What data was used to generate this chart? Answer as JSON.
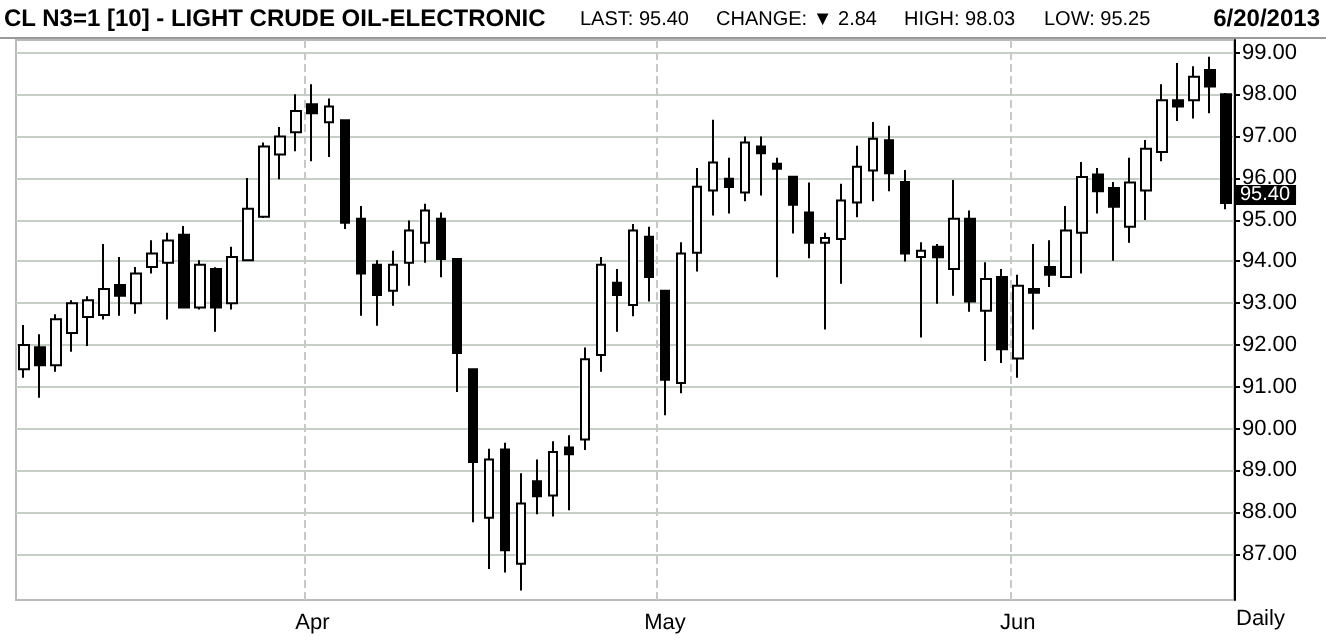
{
  "chart_data": {
    "type": "candlestick",
    "title": "CL N3=1 [10] - LIGHT CRUDE OIL-ELECTRONIC",
    "subtitle": "6/20/2013",
    "xlabel": "Daily",
    "annotations": [
      "LAST: 95.40",
      "CHANGE: ▼ 2.84",
      "HIGH: 98.03",
      "LOW: 95.25",
      "95.40"
    ],
    "categories": [
      null,
      null,
      null,
      null,
      null,
      null,
      null,
      null,
      null,
      null,
      null,
      null,
      null,
      null,
      null,
      null,
      null,
      null,
      "Apr",
      null,
      null,
      null,
      null,
      null,
      null,
      null,
      null,
      null,
      null,
      null,
      null,
      null,
      null,
      null,
      null,
      null,
      null,
      null,
      null,
      null,
      "May",
      null,
      null,
      null,
      null,
      null,
      null,
      null,
      null,
      null,
      null,
      null,
      null,
      null,
      null,
      null,
      null,
      null,
      null,
      null,
      null,
      null,
      "Jun",
      null,
      null,
      null,
      null,
      null,
      null,
      null,
      null,
      null,
      null,
      null,
      null,
      null
    ],
    "series": [
      {
        "color": "#000000",
        "ohlc": [
          [
            91.42,
            92.48,
            91.22,
            92.0
          ],
          [
            91.95,
            92.26,
            90.74,
            91.52
          ],
          [
            91.52,
            92.74,
            91.36,
            92.62
          ],
          [
            92.29,
            93.07,
            91.84,
            93.0
          ],
          [
            92.67,
            93.17,
            91.98,
            93.07
          ],
          [
            92.72,
            94.42,
            92.61,
            93.34
          ],
          [
            93.44,
            94.11,
            92.7,
            93.18
          ],
          [
            93.0,
            93.87,
            92.75,
            93.71
          ],
          [
            93.87,
            94.51,
            93.71,
            94.19
          ],
          [
            93.97,
            94.69,
            92.61,
            94.5
          ],
          [
            94.64,
            94.85,
            92.88,
            92.9
          ],
          [
            92.9,
            94.03,
            92.85,
            93.92
          ],
          [
            93.82,
            93.86,
            92.32,
            92.9
          ],
          [
            93.0,
            94.35,
            92.85,
            94.11
          ],
          [
            94.03,
            96.0,
            94.03,
            95.26
          ],
          [
            95.07,
            96.85,
            95.04,
            96.75
          ],
          [
            96.56,
            97.22,
            95.97,
            96.99
          ],
          [
            97.09,
            98.0,
            96.64,
            97.6
          ],
          [
            97.76,
            98.24,
            96.4,
            97.55
          ],
          [
            97.33,
            97.9,
            96.5,
            97.71
          ],
          [
            97.38,
            97.4,
            94.78,
            94.93
          ],
          [
            95.02,
            95.33,
            92.7,
            93.71
          ],
          [
            93.92,
            94.03,
            92.46,
            93.2
          ],
          [
            93.3,
            94.26,
            92.94,
            93.92
          ],
          [
            93.97,
            94.98,
            93.42,
            94.74
          ],
          [
            94.45,
            95.38,
            93.97,
            95.22
          ],
          [
            95.02,
            95.17,
            93.62,
            94.06
          ],
          [
            94.06,
            94.06,
            90.88,
            91.81
          ],
          [
            91.42,
            91.42,
            87.76,
            89.2
          ],
          [
            87.87,
            89.52,
            86.64,
            89.26
          ],
          [
            89.5,
            89.66,
            86.56,
            87.09
          ],
          [
            86.77,
            88.93,
            86.13,
            88.21
          ],
          [
            88.74,
            89.26,
            87.95,
            88.38
          ],
          [
            88.4,
            89.7,
            87.9,
            89.44
          ],
          [
            89.55,
            89.84,
            88.05,
            89.39
          ],
          [
            89.74,
            91.94,
            89.49,
            91.66
          ],
          [
            91.76,
            94.11,
            91.36,
            93.92
          ],
          [
            93.49,
            93.82,
            92.32,
            93.2
          ],
          [
            92.96,
            94.9,
            92.69,
            94.74
          ],
          [
            94.59,
            94.83,
            93.04,
            93.63
          ],
          [
            93.3,
            93.3,
            90.32,
            91.17
          ],
          [
            91.09,
            94.46,
            90.85,
            94.19
          ],
          [
            94.21,
            96.24,
            93.76,
            95.79
          ],
          [
            95.7,
            97.39,
            95.1,
            96.37
          ],
          [
            95.98,
            96.48,
            95.15,
            95.78
          ],
          [
            95.65,
            96.99,
            95.44,
            96.85
          ],
          [
            96.75,
            96.99,
            95.58,
            96.59
          ],
          [
            96.34,
            96.48,
            93.62,
            96.22
          ],
          [
            96.03,
            96.03,
            94.67,
            95.36
          ],
          [
            95.17,
            95.89,
            94.08,
            94.45
          ],
          [
            94.45,
            94.69,
            92.37,
            94.56
          ],
          [
            94.54,
            95.86,
            93.47,
            95.46
          ],
          [
            95.41,
            96.77,
            95.06,
            96.27
          ],
          [
            96.18,
            97.34,
            95.44,
            96.94
          ],
          [
            96.9,
            97.25,
            95.68,
            96.11
          ],
          [
            95.9,
            96.19,
            94.0,
            94.19
          ],
          [
            94.11,
            94.46,
            92.18,
            94.26
          ],
          [
            94.35,
            94.42,
            92.99,
            94.1
          ],
          [
            93.82,
            95.95,
            93.18,
            95.02
          ],
          [
            95.02,
            95.22,
            92.8,
            93.04
          ],
          [
            92.82,
            93.98,
            91.62,
            93.58
          ],
          [
            93.63,
            93.82,
            91.57,
            91.9
          ],
          [
            91.68,
            93.68,
            91.22,
            93.42
          ],
          [
            93.34,
            94.42,
            92.37,
            93.25
          ],
          [
            93.87,
            94.51,
            93.39,
            93.68
          ],
          [
            93.63,
            95.33,
            93.63,
            94.74
          ],
          [
            94.69,
            96.38,
            93.71,
            96.02
          ],
          [
            96.08,
            96.24,
            95.15,
            95.68
          ],
          [
            95.76,
            95.9,
            94.02,
            95.31
          ],
          [
            94.83,
            96.48,
            94.45,
            95.89
          ],
          [
            95.7,
            96.91,
            94.99,
            96.7
          ],
          [
            96.62,
            98.24,
            96.4,
            97.86
          ],
          [
            97.86,
            98.75,
            97.36,
            97.71
          ],
          [
            97.86,
            98.67,
            97.42,
            98.42
          ],
          [
            98.58,
            98.9,
            97.55,
            98.19
          ],
          [
            98.0,
            98.03,
            95.25,
            95.4
          ]
        ]
      }
    ],
    "ylim": [
      85.9,
      99.3
    ],
    "yticks": [
      {
        "value": 87,
        "label": "87.00"
      },
      {
        "value": 88,
        "label": "88.00"
      },
      {
        "value": 89,
        "label": "89.00"
      },
      {
        "value": 90,
        "label": "90.00"
      },
      {
        "value": 91,
        "label": "91.00"
      },
      {
        "value": 92,
        "label": "92.00"
      },
      {
        "value": 93,
        "label": "93.00"
      },
      {
        "value": 94,
        "label": "94.00"
      },
      {
        "value": 95,
        "label": "95.00"
      },
      {
        "value": 96,
        "label": "96.00"
      },
      {
        "value": 97,
        "label": "97.00"
      },
      {
        "value": 98,
        "label": "98.00"
      },
      {
        "value": 99,
        "label": "99.00"
      }
    ],
    "grid": true
  }
}
